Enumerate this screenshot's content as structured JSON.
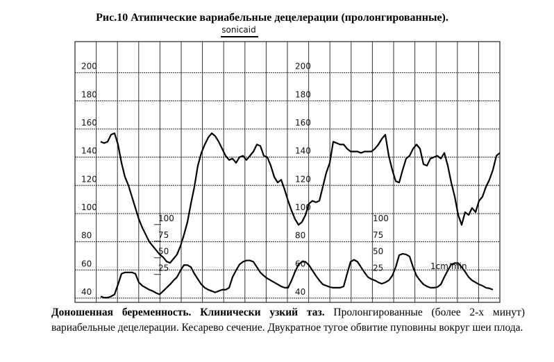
{
  "chart_data": {
    "type": "line",
    "title": "Рис.10 Атипические вариабельные децелерации (пролонгированные).",
    "brand": "sonicaid",
    "annotation": "1cm/min",
    "ylim": [
      37,
      222
    ],
    "yticks": [
      40,
      60,
      80,
      100,
      120,
      140,
      160,
      180,
      200
    ],
    "y2lim": [
      -17,
      375
    ],
    "y2ticks": [
      25,
      50,
      75,
      100
    ],
    "grid": true,
    "series": [
      {
        "color": "#000000",
        "values": [
          151,
          150,
          151,
          156,
          157,
          149,
          136,
          126,
          120,
          112,
          104,
          96,
          90,
          85,
          80,
          77,
          74,
          71,
          69,
          66,
          65,
          68,
          71,
          77,
          85,
          94,
          107,
          119,
          134,
          143,
          149,
          154,
          157,
          155,
          151,
          146,
          141,
          138,
          139,
          136,
          140,
          141,
          138,
          141,
          144,
          149,
          148,
          141,
          140,
          134,
          126,
          122,
          124,
          117,
          109,
          102,
          96,
          92,
          94,
          99,
          107,
          109,
          108,
          109,
          119,
          129,
          136,
          151,
          150,
          149,
          149,
          146,
          144,
          144,
          144,
          143,
          144,
          144,
          144,
          146,
          149,
          153,
          156,
          141,
          131,
          123,
          122,
          131,
          139,
          141,
          146,
          149,
          146,
          135,
          134,
          139,
          140,
          141,
          139,
          143,
          134,
          122,
          112,
          99,
          92,
          101,
          99,
          104,
          101,
          109,
          112,
          119,
          124,
          131,
          141,
          143
        ]
      },
      {
        "color": "#000000",
        "axis": "y2",
        "values": [
          -8,
          -10,
          -10,
          -8,
          -5,
          10,
          26,
          28,
          28,
          28,
          26,
          13,
          8,
          5,
          2,
          0,
          -3,
          -5,
          0,
          5,
          10,
          16,
          21,
          31,
          39,
          39,
          36,
          26,
          18,
          10,
          5,
          2,
          0,
          -2,
          0,
          2,
          2,
          5,
          21,
          31,
          40,
          44,
          46,
          46,
          44,
          36,
          28,
          23,
          19,
          16,
          13,
          10,
          7,
          5,
          5,
          16,
          29,
          40,
          44,
          44,
          39,
          31,
          23,
          16,
          10,
          8,
          6,
          5,
          5,
          5,
          7,
          26,
          44,
          47,
          44,
          36,
          28,
          21,
          18,
          16,
          13,
          11,
          13,
          16,
          23,
          36,
          54,
          56,
          55,
          52,
          36,
          23,
          16,
          10,
          7,
          5,
          5,
          6,
          10,
          21,
          31,
          40,
          42,
          42,
          36,
          29,
          21,
          16,
          13,
          10,
          8,
          5,
          4,
          2
        ]
      }
    ]
  },
  "caption": {
    "bold": "Доношенная беременность. Клинически узкий таз.",
    "text": "Пролонгированные (более 2-х минут) вариабельные децелерации. Кесарево сечение. Двукратное тугое обвитие пуповины вокруг шеи плода."
  }
}
